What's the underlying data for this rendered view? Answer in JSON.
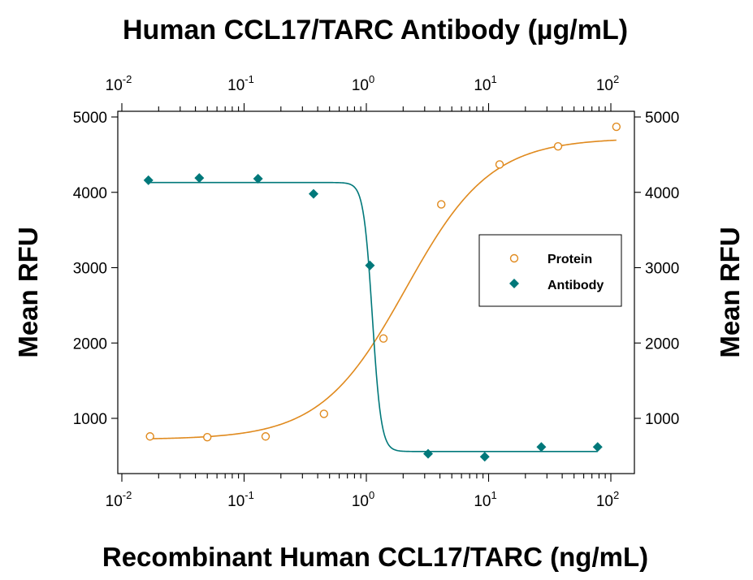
{
  "chart_data": {
    "type": "scatter",
    "title": "Human CCL17/TARC Antibody (µg/mL)",
    "xlabel": "Recombinant Human CCL17/TARC (ng/mL)",
    "ylabel_left": "Mean RFU",
    "ylabel_right": "Mean RFU",
    "x_scale": "log",
    "xlim": [
      0.01,
      150
    ],
    "ylim": [
      300,
      5100
    ],
    "x_tick_labels": [
      {
        "value": 0.01,
        "base": "10",
        "exp": "-2"
      },
      {
        "value": 0.1,
        "base": "10",
        "exp": "-1"
      },
      {
        "value": 1,
        "base": "10",
        "exp": "0"
      },
      {
        "value": 10,
        "base": "10",
        "exp": "1"
      },
      {
        "value": 100,
        "base": "10",
        "exp": "2"
      }
    ],
    "y_ticks": [
      1000,
      2000,
      3000,
      4000,
      5000
    ],
    "legend_position": "right",
    "series": [
      {
        "name": "Protein",
        "marker": "open-circle",
        "color": "#E08A1E",
        "x": [
          0.017,
          0.05,
          0.15,
          0.45,
          1.38,
          4.1,
          12.3,
          37,
          111
        ],
        "y": [
          760,
          750,
          760,
          1060,
          2060,
          3840,
          4370,
          4610,
          4870
        ],
        "fit": {
          "model": "4PL",
          "bottom": 720,
          "top": 4720,
          "ec50": 2.1,
          "hill": 1.25
        }
      },
      {
        "name": "Antibody",
        "marker": "filled-diamond",
        "color": "#00787A",
        "x": [
          0.0165,
          0.043,
          0.13,
          0.37,
          1.07,
          3.2,
          9.3,
          27,
          78
        ],
        "y": [
          4160,
          4190,
          4180,
          3980,
          3030,
          530,
          490,
          620,
          620
        ],
        "fit": {
          "model": "4PL",
          "bottom": 560,
          "top": 4130,
          "ec50": 1.12,
          "hill": -12
        }
      }
    ]
  }
}
